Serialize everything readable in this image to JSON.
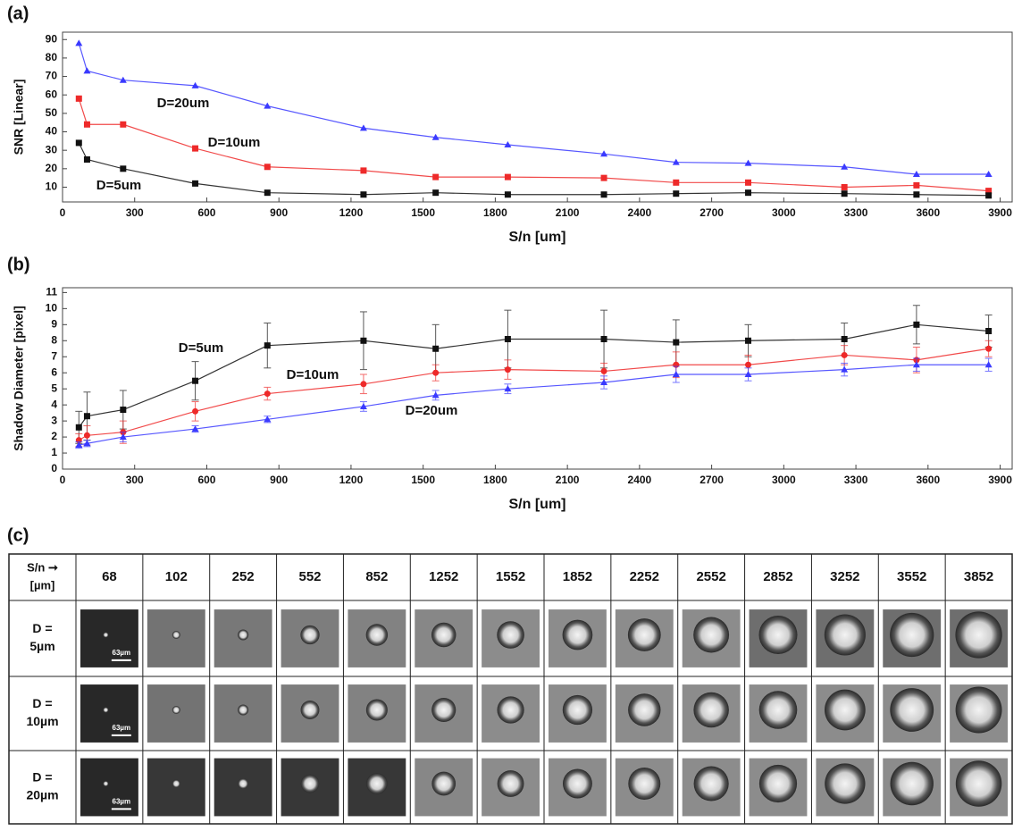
{
  "chart_data": [
    {
      "type": "line",
      "panel": "(a)",
      "x_label": "S/n [um]",
      "y_label": "SNR [Linear]",
      "x": [
        68,
        102,
        252,
        552,
        852,
        1252,
        1552,
        1852,
        2252,
        2552,
        2852,
        3252,
        3552,
        3852
      ],
      "xlim": [
        0,
        3950
      ],
      "xticks": [
        0,
        300,
        600,
        900,
        1200,
        1500,
        1800,
        2100,
        2400,
        2700,
        3000,
        3300,
        3600,
        3900
      ],
      "ylim": [
        2,
        94
      ],
      "yticks": [
        10,
        20,
        30,
        40,
        50,
        60,
        70,
        80,
        90
      ],
      "series": [
        {
          "name": "D=20um",
          "color": "#3a3aff",
          "marker": "triangle",
          "values": [
            88,
            73,
            68,
            65,
            54,
            42,
            37,
            33,
            28,
            23.5,
            23,
            21,
            17,
            17
          ]
        },
        {
          "name": "D=10um",
          "color": "#ee2a2a",
          "marker": "square",
          "values": [
            58,
            44,
            44,
            31,
            21,
            19,
            15.5,
            15.5,
            15,
            12.5,
            12.5,
            10,
            11,
            8
          ]
        },
        {
          "name": "D=5um",
          "color": "#111111",
          "marker": "square",
          "values": [
            34,
            25,
            20,
            12,
            7,
            6,
            7,
            6,
            6,
            6.5,
            7,
            6.5,
            6,
            5.5
          ]
        }
      ]
    },
    {
      "type": "line",
      "panel": "(b)",
      "x_label": "S/n [um]",
      "y_label": "Shadow Diameter [pixel]",
      "x": [
        68,
        102,
        252,
        552,
        852,
        1252,
        1552,
        1852,
        2252,
        2552,
        2852,
        3252,
        3552,
        3852
      ],
      "xlim": [
        0,
        3950
      ],
      "xticks": [
        0,
        300,
        600,
        900,
        1200,
        1500,
        1800,
        2100,
        2400,
        2700,
        3000,
        3300,
        3600,
        3900
      ],
      "ylim": [
        0,
        11.3
      ],
      "yticks": [
        0,
        1,
        2,
        3,
        4,
        5,
        6,
        7,
        8,
        9,
        10,
        11
      ],
      "series": [
        {
          "name": "D=5um",
          "color": "#111111",
          "marker": "square",
          "values": [
            2.6,
            3.3,
            3.7,
            5.5,
            7.7,
            8.0,
            7.5,
            8.1,
            8.1,
            7.9,
            8.0,
            8.1,
            9.0,
            8.6
          ],
          "errors": [
            1.0,
            1.5,
            1.2,
            1.2,
            1.4,
            1.8,
            1.5,
            1.8,
            1.8,
            1.4,
            1.0,
            1.0,
            1.2,
            1.0
          ]
        },
        {
          "name": "D=10um",
          "color": "#ee2a2a",
          "marker": "circle",
          "values": [
            1.8,
            2.1,
            2.3,
            3.6,
            4.7,
            5.3,
            6.0,
            6.2,
            6.1,
            6.5,
            6.5,
            7.1,
            6.8,
            7.5
          ],
          "errors": [
            0.4,
            0.6,
            0.7,
            0.6,
            0.4,
            0.6,
            0.5,
            0.6,
            0.5,
            0.8,
            0.6,
            0.6,
            0.8,
            0.5
          ]
        },
        {
          "name": "D=20um",
          "color": "#3a3aff",
          "marker": "triangle",
          "values": [
            1.5,
            1.6,
            2.0,
            2.5,
            3.1,
            3.9,
            4.6,
            5.0,
            5.4,
            5.9,
            5.9,
            6.2,
            6.5,
            6.5
          ],
          "errors": [
            0.2,
            0.2,
            0.3,
            0.2,
            0.2,
            0.3,
            0.3,
            0.3,
            0.4,
            0.5,
            0.4,
            0.4,
            0.4,
            0.4
          ]
        }
      ]
    }
  ],
  "table": {
    "panel": "(c)",
    "header": [
      "S/n ➞",
      "[µm]"
    ],
    "columns": [
      "68",
      "102",
      "252",
      "552",
      "852",
      "1252",
      "1552",
      "1852",
      "2252",
      "2552",
      "2852",
      "3252",
      "3552",
      "3852"
    ],
    "rows": [
      [
        "D =",
        "5µm"
      ],
      [
        "D =",
        "10µm"
      ],
      [
        "D =",
        "20µm"
      ]
    ],
    "scale_bar": "63µm"
  }
}
